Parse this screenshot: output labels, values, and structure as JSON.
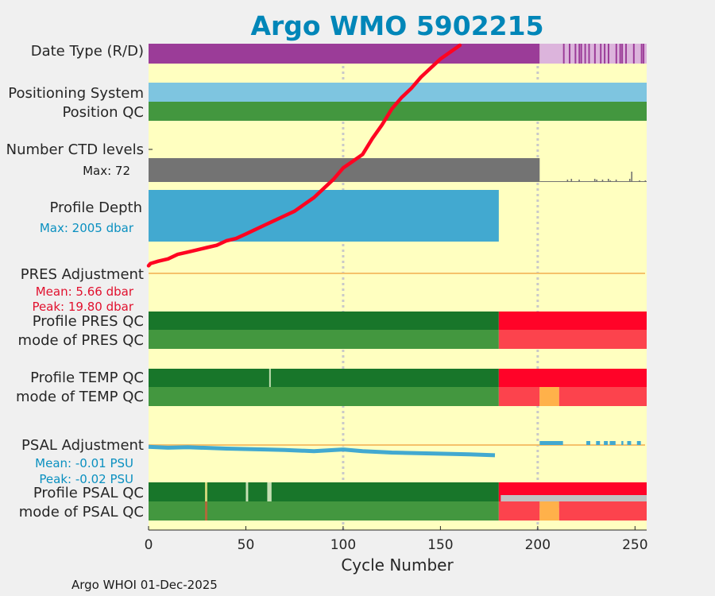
{
  "chart_data": {
    "type": "timeline",
    "title": "Argo WMO 5902215",
    "xlabel": "Cycle Number",
    "xlim": [
      0,
      256
    ],
    "xticks": [
      "0",
      "50",
      "100",
      "150",
      "200",
      "250"
    ],
    "footer": "Argo WHOI 01-Dec-2025",
    "grid_cycles": [
      100,
      200
    ],
    "rows": {
      "date_type": "Date Type (R/D)",
      "positioning": "Positioning System",
      "position_qc": "Position QC",
      "ctd_levels": "Number CTD levels",
      "ctd_max": "Max: 72",
      "profile_depth": "Profile Depth",
      "depth_max": "Max: 2005 dbar",
      "pres_adj": "PRES Adjustment",
      "pres_mean": "Mean: 5.66 dbar",
      "pres_peak": "Peak: 19.80 dbar",
      "profile_pres_qc": "Profile PRES QC",
      "mode_pres_qc": "mode of PRES QC",
      "profile_temp_qc": "Profile TEMP QC",
      "mode_temp_qc": "mode of TEMP QC",
      "psal_adj": "PSAL Adjustment",
      "psal_mean": "Mean: -0.01 PSU",
      "psal_peak": "Peak: -0.02 PSU",
      "profile_psal_qc": "Profile PSAL QC",
      "mode_psal_qc": "mode of PSAL QC"
    },
    "colors": {
      "background": "#ffffc0",
      "title": "#0086b8",
      "realtime": "#9b3c98",
      "delayed": "#dcb4dc",
      "positioning": "#7ec5e0",
      "qc_good_dark": "#18762a",
      "qc_good": "#43973f",
      "qc_bad": "#ff0328",
      "qc_bad_light": "#fc434d",
      "qc_probably_bad": "#ffb14a",
      "missing": "#c1c1c1",
      "ctd": "#737373",
      "depth": "#42a9d0",
      "pres_label": "#e1112e",
      "psal_label": "#0a90c0",
      "adjust_line": "#f5c16a",
      "trace": "#ff0321"
    },
    "series": {
      "date_type_realtime_segments": [
        [
          0,
          201
        ]
      ],
      "date_type_delayed_segments": [
        [
          201,
          213
        ]
      ],
      "date_type_realtime_stripes": [
        213,
        216,
        219,
        221,
        222,
        224,
        226,
        229,
        232,
        234,
        236,
        240,
        242,
        243,
        245,
        249,
        253,
        254
      ],
      "ctd_levels_max_segments": [
        [
          0,
          201
        ]
      ],
      "ctd_sparse_cycles": [
        {
          "cycle": 215,
          "level": 3
        },
        {
          "cycle": 217,
          "level": 4
        },
        {
          "cycle": 221,
          "level": 3
        },
        {
          "cycle": 229,
          "level": 4
        },
        {
          "cycle": 230,
          "level": 3
        },
        {
          "cycle": 233,
          "level": 3
        },
        {
          "cycle": 236,
          "level": 4
        },
        {
          "cycle": 240,
          "level": 3
        },
        {
          "cycle": 247,
          "level": 4
        },
        {
          "cycle": 248,
          "level": 13
        },
        {
          "cycle": 255,
          "level": 2
        },
        {
          "cycle": 237,
          "level": 2
        },
        {
          "cycle": 252,
          "level": 2
        }
      ],
      "profile_depth_segments": [
        [
          0,
          180
        ]
      ],
      "pres_qc": {
        "profile": [
          {
            "from": 0,
            "to": 180,
            "flag": "good"
          },
          {
            "from": 180,
            "to": 256,
            "flag": "bad"
          }
        ],
        "mode": [
          {
            "from": 0,
            "to": 180,
            "flag": "good"
          },
          {
            "from": 180,
            "to": 256,
            "flag": "bad"
          }
        ]
      },
      "temp_qc": {
        "profile": [
          {
            "from": 0,
            "to": 180,
            "flag": "good"
          },
          {
            "from": 180,
            "to": 256,
            "flag": "bad"
          }
        ],
        "profile_marks": [
          62
        ],
        "mode": [
          {
            "from": 0,
            "to": 180,
            "flag": "good"
          },
          {
            "from": 180,
            "to": 201,
            "flag": "bad"
          },
          {
            "from": 201,
            "to": 211,
            "flag": "probably_bad"
          },
          {
            "from": 211,
            "to": 256,
            "flag": "bad"
          }
        ]
      },
      "psal_qc": {
        "profile": [
          {
            "from": 0,
            "to": 180,
            "flag": "good"
          },
          {
            "from": 180,
            "to": 256,
            "flag": "bad"
          }
        ],
        "profile_marks": [
          29,
          50,
          61,
          62
        ],
        "profile_missing": [
          [
            181,
            256
          ]
        ],
        "mode": [
          {
            "from": 0,
            "to": 180,
            "flag": "good"
          },
          {
            "from": 180,
            "to": 201,
            "flag": "bad"
          },
          {
            "from": 201,
            "to": 211,
            "flag": "probably_bad"
          },
          {
            "from": 211,
            "to": 256,
            "flag": "bad"
          }
        ],
        "mode_marks": [
          29
        ]
      },
      "psal_adjustment": {
        "points": [
          [
            0,
            -0.004
          ],
          [
            10,
            -0.006
          ],
          [
            20,
            -0.005
          ],
          [
            40,
            -0.008
          ],
          [
            60,
            -0.01
          ],
          [
            70,
            -0.011
          ],
          [
            85,
            -0.014
          ],
          [
            100,
            -0.01
          ],
          [
            110,
            -0.014
          ],
          [
            125,
            -0.017
          ],
          [
            145,
            -0.019
          ],
          [
            165,
            -0.021
          ],
          [
            178,
            -0.023
          ]
        ],
        "dashes_after_delayed": [
          [
            201,
            213
          ],
          [
            225,
            227
          ],
          [
            230,
            232
          ],
          [
            234,
            236
          ],
          [
            237,
            240
          ],
          [
            243,
            244
          ],
          [
            246,
            248
          ],
          [
            251,
            253
          ]
        ]
      },
      "trace": {
        "points": [
          [
            0,
            0.03
          ],
          [
            1,
            0.04
          ],
          [
            5,
            0.05
          ],
          [
            10,
            0.06
          ],
          [
            15,
            0.08
          ],
          [
            20,
            0.09
          ],
          [
            25,
            0.1
          ],
          [
            30,
            0.11
          ],
          [
            35,
            0.12
          ],
          [
            40,
            0.14
          ],
          [
            45,
            0.15
          ],
          [
            50,
            0.17
          ],
          [
            55,
            0.19
          ],
          [
            60,
            0.21
          ],
          [
            65,
            0.23
          ],
          [
            70,
            0.25
          ],
          [
            75,
            0.27
          ],
          [
            80,
            0.3
          ],
          [
            85,
            0.33
          ],
          [
            90,
            0.37
          ],
          [
            95,
            0.41
          ],
          [
            100,
            0.46
          ],
          [
            105,
            0.49
          ],
          [
            110,
            0.52
          ],
          [
            115,
            0.59
          ],
          [
            120,
            0.65
          ],
          [
            125,
            0.72
          ],
          [
            130,
            0.77
          ],
          [
            135,
            0.81
          ],
          [
            140,
            0.86
          ],
          [
            145,
            0.9
          ],
          [
            150,
            0.94
          ],
          [
            155,
            0.97
          ],
          [
            160,
            1.0
          ]
        ]
      }
    }
  }
}
